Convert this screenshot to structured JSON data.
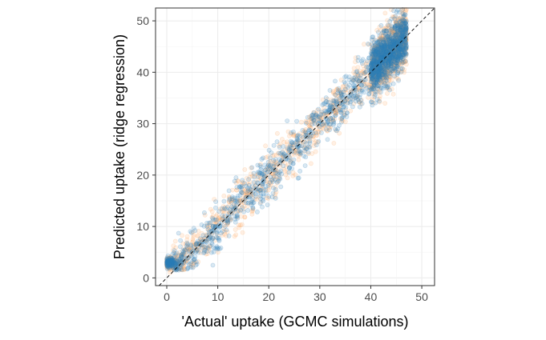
{
  "chart_data": {
    "type": "scatter",
    "title": "",
    "xlabel": "'Actual' uptake (GCMC simulations)",
    "ylabel": "Predicted uptake (ridge regression)",
    "xlim": [
      -2.2,
      52.5
    ],
    "ylim": [
      -1.5,
      52.5
    ],
    "x_ticks": [
      0,
      10,
      20,
      30,
      40,
      50
    ],
    "y_ticks": [
      0,
      10,
      20,
      30,
      40,
      50
    ],
    "grid": true,
    "legend": "none",
    "reference_line": {
      "style": "dashed",
      "color": "#000000",
      "equation": "y = x"
    },
    "series": [
      {
        "color": "#FDAE6B",
        "opacity": 0.18,
        "point_count": 1800,
        "values": [
          [
            0.5,
            3.2
          ],
          [
            1.0,
            2.5
          ],
          [
            2.0,
            4.1
          ],
          [
            3.0,
            3.0
          ],
          [
            4.5,
            6.0
          ],
          [
            6.0,
            5.5
          ],
          [
            8.0,
            9.5
          ],
          [
            10.0,
            8.2
          ],
          [
            12.0,
            13.0
          ],
          [
            15.0,
            16.5
          ],
          [
            18.0,
            17.0
          ],
          [
            20.0,
            22.0
          ],
          [
            22.0,
            20.5
          ],
          [
            25.0,
            26.0
          ],
          [
            28.0,
            27.5
          ],
          [
            30.0,
            31.0
          ],
          [
            33.0,
            32.0
          ],
          [
            35.0,
            36.5
          ],
          [
            38.0,
            37.0
          ],
          [
            40.0,
            41.5
          ],
          [
            42.0,
            40.0
          ],
          [
            44.0,
            45.0
          ],
          [
            46.0,
            44.5
          ]
        ]
      },
      {
        "color": "#2C7FB8",
        "opacity": 0.18,
        "point_count": 1800,
        "values": [
          [
            0.2,
            2.8
          ],
          [
            0.8,
            3.1
          ],
          [
            1.5,
            2.9
          ],
          [
            3.0,
            4.0
          ],
          [
            5.0,
            5.0
          ],
          [
            7.0,
            6.5
          ],
          [
            9.0,
            10.0
          ],
          [
            11.0,
            11.5
          ],
          [
            14.0,
            13.0
          ],
          [
            16.0,
            17.0
          ],
          [
            19.0,
            19.5
          ],
          [
            21.0,
            21.0
          ],
          [
            24.0,
            25.0
          ],
          [
            27.0,
            26.5
          ],
          [
            29.0,
            30.0
          ],
          [
            32.0,
            33.0
          ],
          [
            34.0,
            35.0
          ],
          [
            37.0,
            38.0
          ],
          [
            39.0,
            40.0
          ],
          [
            41.0,
            43.0
          ],
          [
            43.0,
            44.0
          ],
          [
            45.0,
            46.0
          ],
          [
            47.0,
            45.0
          ]
        ]
      }
    ]
  }
}
